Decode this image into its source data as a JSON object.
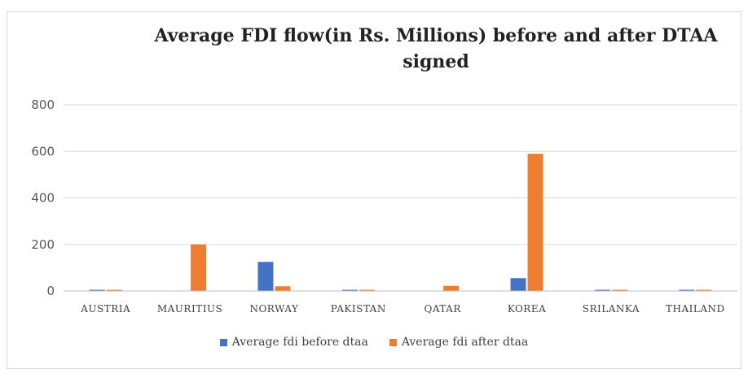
{
  "chart_data": {
    "type": "bar",
    "title": "Average FDI flow(in Rs. Millions)  before and after DTAA signed",
    "categories": [
      "AUSTRIA",
      "MAURITIUS",
      "NORWAY",
      "PAKISTAN",
      "QATAR",
      "KOREA",
      "SRILANKA",
      "THAILAND"
    ],
    "series": [
      {
        "name": "Average fdi before dtaa",
        "color": "#4472C4",
        "values": [
          5,
          0,
          125,
          5,
          0,
          55,
          5,
          5
        ]
      },
      {
        "name": "Average fdi after dtaa",
        "color": "#ED7D31",
        "values": [
          5,
          200,
          20,
          5,
          22,
          590,
          5,
          5
        ]
      }
    ],
    "yticks": [
      "0",
      "200",
      "400",
      "600",
      "800"
    ],
    "ylim": [
      0,
      800
    ],
    "grid": true,
    "legend": "bottom"
  }
}
